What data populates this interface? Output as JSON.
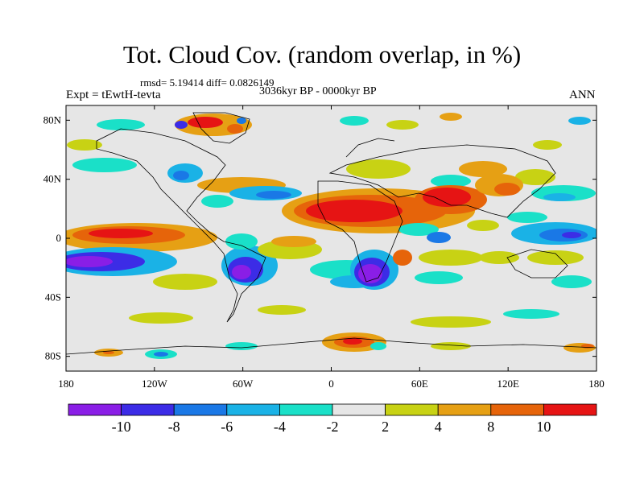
{
  "title": "Tot. Cloud Cov. (random overlap, in %)",
  "stats": "rmsd= 5.19414 diff= 0.0826149",
  "experiment": "Expt = tEwtH-tevta",
  "period": "3036kyr BP - 0000kyr BP",
  "season": "ANN",
  "map": {
    "projection": "cylindrical equidistant",
    "lat_labels": [
      "80N",
      "40N",
      "0",
      "40S",
      "80S"
    ],
    "lon_labels": [
      "180",
      "120W",
      "60W",
      "0",
      "60E",
      "120E",
      "180"
    ],
    "lat_values": [
      80,
      40,
      0,
      -40,
      -80
    ],
    "lon_values": [
      -180,
      -120,
      -60,
      0,
      60,
      120,
      180
    ],
    "lat_range": [
      -90,
      90
    ],
    "lon_range": [
      -180,
      180
    ]
  },
  "colorbar": {
    "colors": [
      "#8a1ee6",
      "#3c2ce6",
      "#1a78e6",
      "#1ab2e6",
      "#1ae0c8",
      "#e6e6e6",
      "#c8d214",
      "#e6a014",
      "#e6640a",
      "#e61414"
    ],
    "labels": [
      "-10",
      "-8",
      "-6",
      "-4",
      "-2",
      "2",
      "4",
      "8",
      "10"
    ]
  },
  "palette": {
    "neutral": "#e6e6e6",
    "yellow": "#c8d214",
    "orange": "#e6a014",
    "dark_orange": "#e6640a",
    "red": "#e61414",
    "teal": "#1ae0c8",
    "cyan": "#1ab2e6",
    "blue": "#1a78e6",
    "dark_blue": "#3c2ce6",
    "purple": "#8a1ee6"
  }
}
